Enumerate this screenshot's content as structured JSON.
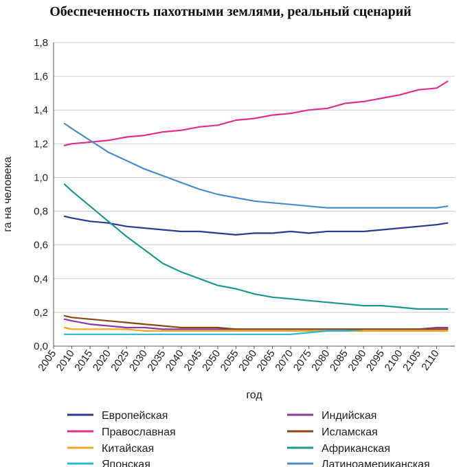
{
  "chart_data": {
    "type": "line",
    "title": "Обеспеченность пахотными землями, реальный сценарий",
    "xlabel": "год",
    "ylabel": "га на человека",
    "xlim": [
      2005,
      2115
    ],
    "ylim": [
      0,
      1.8
    ],
    "x_ticks": [
      "2005",
      "2010",
      "2015",
      "2020",
      "2025",
      "2030",
      "2035",
      "2040",
      "2045",
      "2050",
      "2055",
      "2060",
      "2065",
      "2070",
      "2075",
      "2080",
      "2085",
      "2090",
      "2095",
      "2100",
      "2105",
      "2110"
    ],
    "y_ticks": [
      "0,0",
      "0,2",
      "0,4",
      "0,6",
      "0,8",
      "1,0",
      "1,2",
      "1,4",
      "1,6",
      "1,8"
    ],
    "grid": "horizontal",
    "legend_position": "bottom",
    "x": [
      2008,
      2010,
      2015,
      2020,
      2025,
      2030,
      2035,
      2040,
      2045,
      2050,
      2055,
      2060,
      2065,
      2070,
      2075,
      2080,
      2085,
      2090,
      2095,
      2100,
      2105,
      2110,
      2113
    ],
    "series": [
      {
        "name": "Европейская",
        "color": "#2b3990",
        "values": [
          0.77,
          0.76,
          0.74,
          0.73,
          0.71,
          0.7,
          0.69,
          0.68,
          0.68,
          0.67,
          0.66,
          0.67,
          0.67,
          0.68,
          0.67,
          0.68,
          0.68,
          0.68,
          0.69,
          0.7,
          0.71,
          0.72,
          0.73
        ]
      },
      {
        "name": "Православная",
        "color": "#e0308a",
        "values": [
          1.19,
          1.2,
          1.21,
          1.22,
          1.24,
          1.25,
          1.27,
          1.28,
          1.3,
          1.31,
          1.34,
          1.35,
          1.37,
          1.38,
          1.4,
          1.41,
          1.44,
          1.45,
          1.47,
          1.49,
          1.52,
          1.53,
          1.57
        ]
      },
      {
        "name": "Китайская",
        "color": "#f5a623",
        "values": [
          0.11,
          0.1,
          0.1,
          0.1,
          0.1,
          0.09,
          0.09,
          0.09,
          0.09,
          0.09,
          0.09,
          0.09,
          0.09,
          0.09,
          0.09,
          0.09,
          0.09,
          0.09,
          0.09,
          0.09,
          0.09,
          0.09,
          0.09
        ]
      },
      {
        "name": "Японская",
        "color": "#2ab8d8",
        "values": [
          0.07,
          0.07,
          0.07,
          0.07,
          0.07,
          0.07,
          0.07,
          0.07,
          0.07,
          0.07,
          0.07,
          0.07,
          0.07,
          0.07,
          0.08,
          0.09,
          0.09,
          0.1,
          0.1,
          0.1,
          0.1,
          0.1,
          0.1
        ]
      },
      {
        "name": "Индийская",
        "color": "#8b3a9e",
        "values": [
          0.16,
          0.15,
          0.13,
          0.12,
          0.11,
          0.11,
          0.1,
          0.1,
          0.1,
          0.1,
          0.1,
          0.1,
          0.1,
          0.1,
          0.1,
          0.1,
          0.1,
          0.1,
          0.1,
          0.1,
          0.1,
          0.11,
          0.11
        ]
      },
      {
        "name": "Исламская",
        "color": "#8b4513",
        "values": [
          0.18,
          0.17,
          0.16,
          0.15,
          0.14,
          0.13,
          0.12,
          0.11,
          0.11,
          0.11,
          0.1,
          0.1,
          0.1,
          0.1,
          0.1,
          0.1,
          0.1,
          0.1,
          0.1,
          0.1,
          0.1,
          0.1,
          0.1
        ]
      },
      {
        "name": "Африканская",
        "color": "#1a9a8a",
        "values": [
          0.96,
          0.92,
          0.83,
          0.74,
          0.65,
          0.57,
          0.49,
          0.44,
          0.4,
          0.36,
          0.34,
          0.31,
          0.29,
          0.28,
          0.27,
          0.26,
          0.25,
          0.24,
          0.24,
          0.23,
          0.22,
          0.22,
          0.22
        ]
      },
      {
        "name": "Латиноамериканская",
        "color": "#4a8cc8",
        "values": [
          1.32,
          1.29,
          1.22,
          1.15,
          1.1,
          1.05,
          1.01,
          0.97,
          0.93,
          0.9,
          0.88,
          0.86,
          0.85,
          0.84,
          0.83,
          0.82,
          0.82,
          0.82,
          0.82,
          0.82,
          0.82,
          0.82,
          0.83
        ]
      }
    ]
  }
}
